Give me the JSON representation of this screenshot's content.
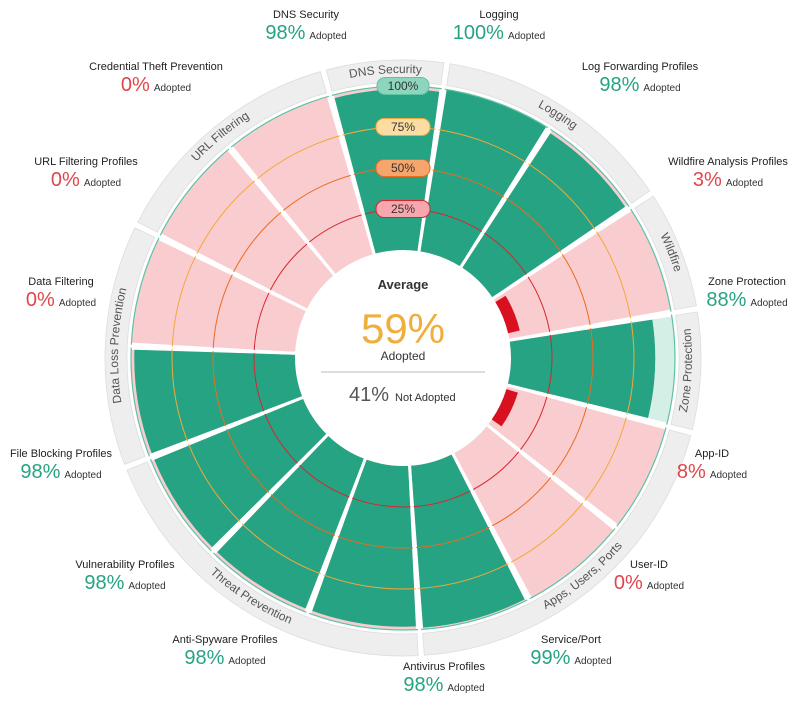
{
  "chart_data": {
    "type": "radial-bar",
    "center": {
      "title": "Average",
      "adopted_pct": "59%",
      "adopted_label": "Adopted",
      "not_adopted_pct": "41%",
      "not_adopted_label": "Not Adopted"
    },
    "rings": [
      "25%",
      "50%",
      "75%",
      "100%"
    ],
    "groups": [
      {
        "name": "DNS Security",
        "items": [
          "DNS Security"
        ]
      },
      {
        "name": "Logging",
        "items": [
          "Logging",
          "Log Forwarding Profiles"
        ]
      },
      {
        "name": "Wildfire",
        "items": [
          "Wildfire Analysis Profiles"
        ]
      },
      {
        "name": "Zone Protection",
        "items": [
          "Zone Protection"
        ]
      },
      {
        "name": "Apps, Users, Ports",
        "items": [
          "App-ID",
          "User-ID",
          "Service/Port"
        ]
      },
      {
        "name": "Threat Prevention",
        "items": [
          "Antivirus Profiles",
          "Anti-Spyware Profiles",
          "Vulnerability Profiles"
        ]
      },
      {
        "name": "Data Loss Prevention",
        "items": [
          "File Blocking Profiles",
          "Data Filtering"
        ]
      },
      {
        "name": "URL Filtering",
        "items": [
          "URL Filtering Profiles",
          "Credential Theft Prevention"
        ]
      }
    ],
    "categories": [
      {
        "name": "DNS Security",
        "value": 98,
        "pct": "98%"
      },
      {
        "name": "Logging",
        "value": 100,
        "pct": "100%"
      },
      {
        "name": "Log Forwarding Profiles",
        "value": 98,
        "pct": "98%"
      },
      {
        "name": "Wildfire Analysis Profiles",
        "value": 3,
        "pct": "3%"
      },
      {
        "name": "Zone Protection",
        "value": 88,
        "pct": "88%"
      },
      {
        "name": "App-ID",
        "value": 8,
        "pct": "8%"
      },
      {
        "name": "User-ID",
        "value": 0,
        "pct": "0%"
      },
      {
        "name": "Service/Port",
        "value": 99,
        "pct": "99%"
      },
      {
        "name": "Antivirus Profiles",
        "value": 98,
        "pct": "98%"
      },
      {
        "name": "Anti-Spyware Profiles",
        "value": 98,
        "pct": "98%"
      },
      {
        "name": "Vulnerability Profiles",
        "value": 98,
        "pct": "98%"
      },
      {
        "name": "File Blocking Profiles",
        "value": 98,
        "pct": "98%"
      },
      {
        "name": "Data Filtering",
        "value": 0,
        "pct": "0%"
      },
      {
        "name": "URL Filtering Profiles",
        "value": 0,
        "pct": "0%"
      },
      {
        "name": "Credential Theft Prevention",
        "value": 0,
        "pct": "0%"
      }
    ],
    "adopted_word": "Adopted",
    "colors": {
      "adopted": "#26a383",
      "not_adopted": "#f9cdd0",
      "low_marker": "#d9101f",
      "group_band": "#eeeeee",
      "ring_25": "#d7262e",
      "ring_50": "#ee6a1e",
      "ring_75": "#f1a93a",
      "ring_100": "#5ec2a4",
      "pill_25": "#f7a7ad",
      "pill_50": "#f6a56c",
      "pill_75": "#fbdca2",
      "pill_100": "#8dd6bd",
      "center_pct": "#f0ae3c"
    }
  }
}
